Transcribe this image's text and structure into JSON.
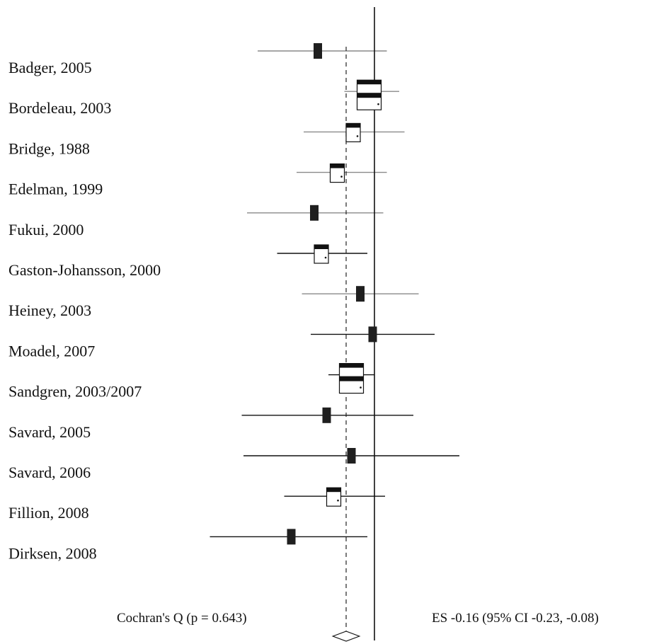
{
  "chart_data": {
    "type": "forest",
    "title": "",
    "xlabel": "",
    "ylabel": "",
    "reference_line_value": 0,
    "pooled_effect_line_value": -0.16,
    "colors": {
      "ink": "#111111",
      "ci_line_gray": "#8a8a8a",
      "box_fill": "#1f1f1f",
      "background": "#ffffff"
    },
    "studies": [
      {
        "label": "Badger, 2005",
        "es": -0.32,
        "ci": [
          -0.66,
          0.07
        ],
        "marker": "filled",
        "ci_line": "gray"
      },
      {
        "label": "Bordeleau, 2003",
        "es": -0.03,
        "ci": [
          -0.17,
          0.14
        ],
        "marker": "hollow",
        "ci_line": "gray"
      },
      {
        "label": "Bridge, 1988",
        "es": -0.12,
        "ci": [
          -0.4,
          0.17
        ],
        "marker": "hollow",
        "ci_line": "gray"
      },
      {
        "label": "Edelman, 1999",
        "es": -0.21,
        "ci": [
          -0.44,
          0.07
        ],
        "marker": "hollow",
        "ci_line": "gray"
      },
      {
        "label": "Fukui, 2000",
        "es": -0.34,
        "ci": [
          -0.72,
          0.05
        ],
        "marker": "filled",
        "ci_line": "gray"
      },
      {
        "label": "Gaston-Johansson, 2000",
        "es": -0.3,
        "ci": [
          -0.55,
          -0.04
        ],
        "marker": "hollow",
        "ci_line": "dark"
      },
      {
        "label": "Heiney, 2003",
        "es": -0.08,
        "ci": [
          -0.41,
          0.25
        ],
        "marker": "filled",
        "ci_line": "gray"
      },
      {
        "label": "Moadel, 2007",
        "es": -0.01,
        "ci": [
          -0.36,
          0.34
        ],
        "marker": "filled",
        "ci_line": "dark"
      },
      {
        "label": "Sandgren, 2003/2007",
        "es": -0.13,
        "ci": [
          -0.26,
          0.0
        ],
        "marker": "hollow",
        "ci_line": "dark"
      },
      {
        "label": "Savard, 2005",
        "es": -0.27,
        "ci": [
          -0.75,
          0.22
        ],
        "marker": "filled",
        "ci_line": "dark"
      },
      {
        "label": "Savard, 2006",
        "es": -0.13,
        "ci": [
          -0.74,
          0.48
        ],
        "marker": "filled",
        "ci_line": "dark"
      },
      {
        "label": "Fillion, 2008",
        "es": -0.23,
        "ci": [
          -0.51,
          0.06
        ],
        "marker": "hollow",
        "ci_line": "dark"
      },
      {
        "label": "Dirksen, 2008",
        "es": -0.47,
        "ci": [
          -0.93,
          -0.04
        ],
        "marker": "filled",
        "ci_line": "dark"
      }
    ],
    "pooled": {
      "es": -0.16,
      "ci": [
        -0.23,
        -0.08
      ]
    },
    "heterogeneity_label": "Cochran's Q (p = 0.643)",
    "summary_label": "ES -0.16 (95% CI -0.23, -0.08)"
  }
}
